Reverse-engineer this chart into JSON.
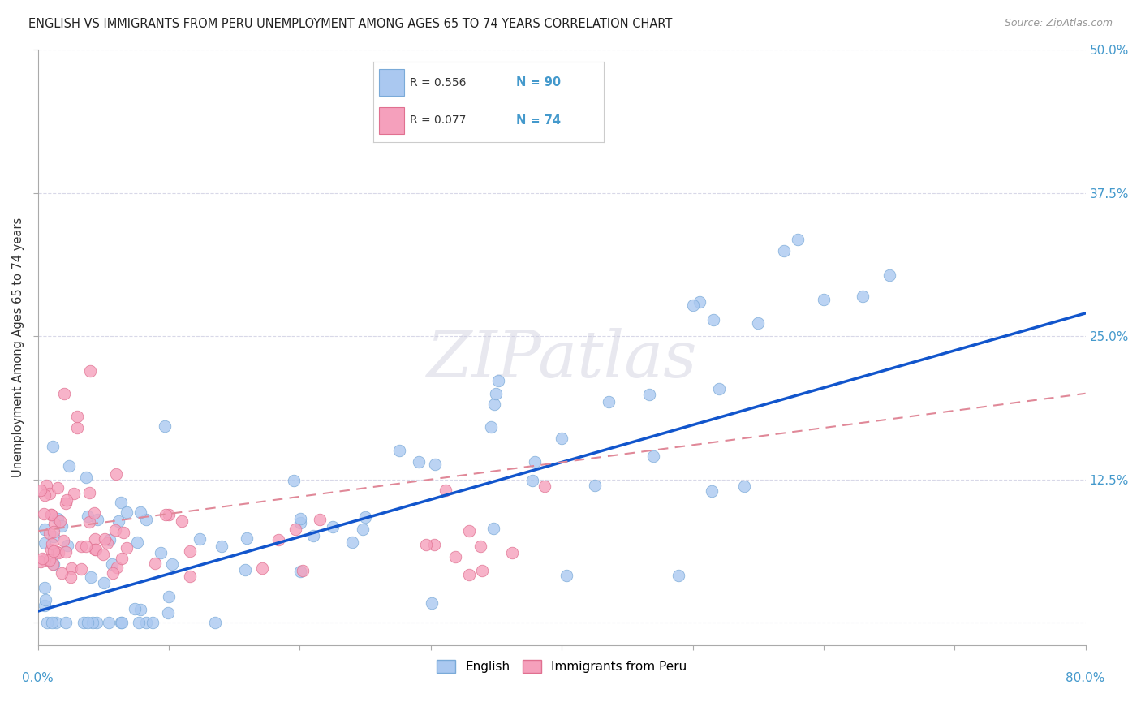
{
  "title": "ENGLISH VS IMMIGRANTS FROM PERU UNEMPLOYMENT AMONG AGES 65 TO 74 YEARS CORRELATION CHART",
  "source": "Source: ZipAtlas.com",
  "ylabel": "Unemployment Among Ages 65 to 74 years",
  "xlim": [
    0.0,
    0.8
  ],
  "ylim": [
    -0.02,
    0.5
  ],
  "plot_ylim": [
    0.0,
    0.5
  ],
  "english_color": "#aac8f0",
  "peru_color": "#f5a0bc",
  "english_edge": "#7aaad8",
  "peru_edge": "#e07090",
  "trend_english_color": "#1155cc",
  "trend_peru_color": "#e08898",
  "R_english": 0.556,
  "N_english": 90,
  "R_peru": 0.077,
  "N_peru": 74,
  "watermark": "ZIPatlas",
  "background_color": "#ffffff",
  "grid_color": "#d8d8e8",
  "title_color": "#222222",
  "axis_label_color": "#333333",
  "tick_label_color": "#4499cc",
  "seed": 12345
}
